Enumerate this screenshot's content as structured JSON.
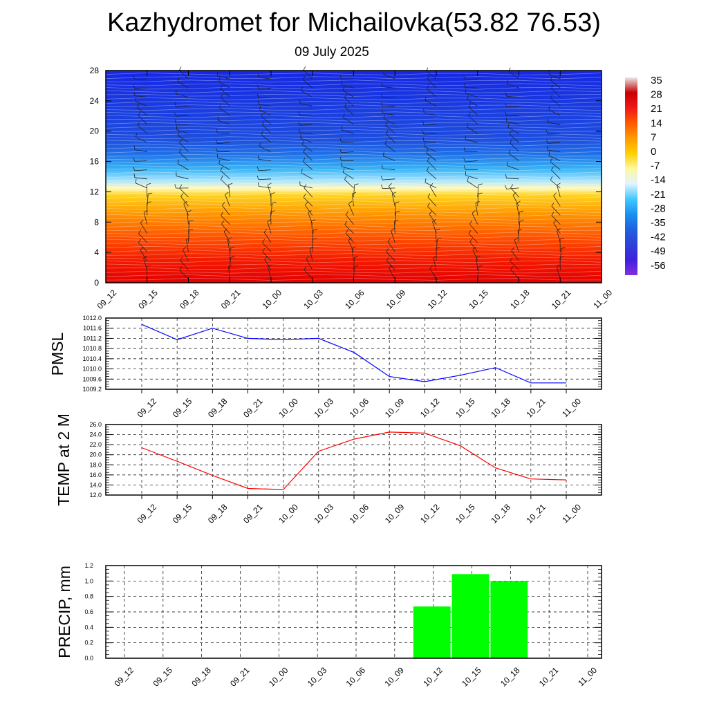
{
  "header": {
    "title": "Kazhydromet for Michailovka(53.82 76.53)",
    "subtitle": "09 July 2025"
  },
  "chart_data": [
    {
      "type": "heatmap",
      "description_type": "vertical cross-section: filled temperature contours with wind barbs",
      "x": [
        "09_12",
        "09_15",
        "09_18",
        "09_21",
        "10_00",
        "10_03",
        "10_06",
        "10_09",
        "10_12",
        "10_15",
        "10_18",
        "10_21",
        "11_00"
      ],
      "y_ticks": [
        "0",
        "4",
        "8",
        "12",
        "16",
        "20",
        "24",
        "28"
      ],
      "ylim": [
        0,
        28
      ],
      "colorbar": {
        "labels": [
          "35",
          "28",
          "21",
          "14",
          "7",
          "0",
          "-7",
          "-14",
          "-21",
          "-28",
          "-35",
          "-42",
          "-49",
          "-56"
        ],
        "colors": [
          "#e8e8e8",
          "#c80000",
          "#f01818",
          "#ff5a00",
          "#ff9a00",
          "#ffd000",
          "#fff8a0",
          "#e0f4ff",
          "#40c8ff",
          "#1890f0",
          "#2060e0",
          "#3040d8",
          "#4020e0",
          "#8030e0"
        ]
      },
      "profile_colors": {
        "stops": [
          {
            "y": 0,
            "color": "#e40000"
          },
          {
            "y": 3,
            "color": "#f51a00"
          },
          {
            "y": 6,
            "color": "#ff5200"
          },
          {
            "y": 9,
            "color": "#ff9400"
          },
          {
            "y": 11.5,
            "color": "#ffd21c"
          },
          {
            "y": 12.5,
            "color": "#fffac0"
          },
          {
            "y": 13.5,
            "color": "#a8e4ff"
          },
          {
            "y": 15,
            "color": "#38b4f5"
          },
          {
            "y": 17,
            "color": "#2070e8"
          },
          {
            "y": 19,
            "color": "#1d4ddf"
          },
          {
            "y": 28,
            "color": "#1628e2"
          }
        ]
      }
    },
    {
      "type": "line",
      "ylabel": "PMSL",
      "x": [
        "09_12",
        "09_15",
        "09_18",
        "09_21",
        "10_00",
        "10_03",
        "10_06",
        "10_09",
        "10_12",
        "10_15",
        "10_18",
        "10_21",
        "11_00"
      ],
      "y_ticks": [
        "1009.2",
        "1009.6",
        "1010.0",
        "1010.4",
        "1010.8",
        "1011.2",
        "1011.6",
        "1012.0"
      ],
      "ylim": [
        1009.2,
        1012.0
      ],
      "series": [
        {
          "values": [
            1011.75,
            1011.15,
            1011.6,
            1011.2,
            1011.15,
            1011.2,
            1010.65,
            1009.7,
            1009.5,
            1009.75,
            1010.05,
            1009.45,
            1009.45
          ],
          "color": "#0000ff"
        }
      ]
    },
    {
      "type": "line",
      "ylabel": "TEMP at 2 M",
      "x": [
        "09_12",
        "09_15",
        "09_18",
        "09_21",
        "10_00",
        "10_03",
        "10_06",
        "10_09",
        "10_12",
        "10_15",
        "10_18",
        "10_21",
        "11_00"
      ],
      "y_ticks": [
        "12.0",
        "14.0",
        "16.0",
        "18.0",
        "20.0",
        "22.0",
        "24.0",
        "26.0"
      ],
      "ylim": [
        12,
        26
      ],
      "series": [
        {
          "values": [
            21.4,
            18.7,
            15.9,
            13.3,
            13.1,
            20.7,
            23.1,
            24.5,
            24.3,
            21.8,
            17.4,
            15.2,
            15.0
          ],
          "color": "#ff0000"
        }
      ]
    },
    {
      "type": "bar",
      "ylabel": "PRECIP, mm",
      "x": [
        "09_12",
        "09_15",
        "09_18",
        "09_21",
        "10_00",
        "10_03",
        "10_06",
        "10_09",
        "10_12",
        "10_15",
        "10_18",
        "10_21",
        "11_00"
      ],
      "y_ticks": [
        "0.0",
        "0.2",
        "0.4",
        "0.6",
        "0.8",
        "1.0",
        "1.2"
      ],
      "ylim": [
        0,
        1.2
      ],
      "values": [
        0,
        0,
        0,
        0,
        0,
        0,
        0,
        0,
        0.67,
        1.09,
        1.0,
        0,
        0
      ],
      "color": "#00ff00"
    }
  ]
}
